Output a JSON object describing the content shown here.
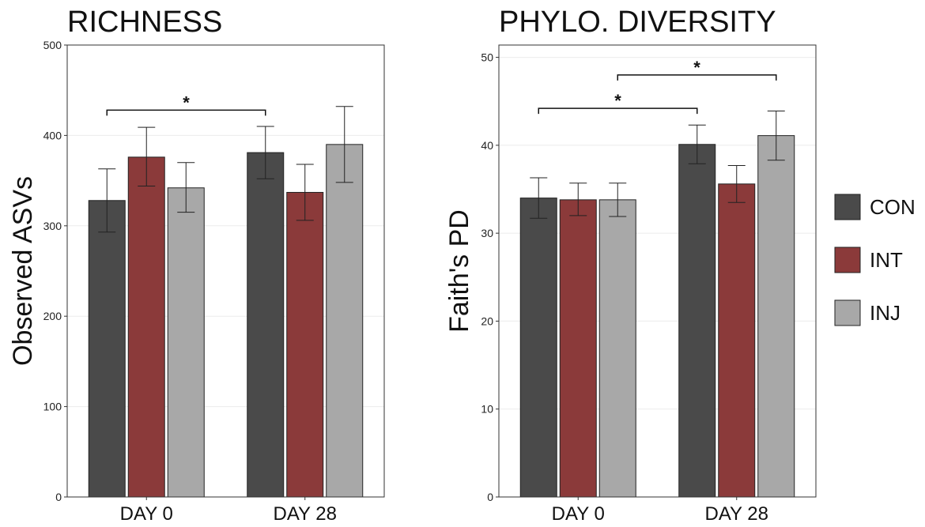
{
  "chart_data": [
    {
      "type": "bar",
      "title": "RICHNESS",
      "xlabel": "",
      "ylabel": "Observed ASVs",
      "ylim": [
        0,
        500
      ],
      "yticks": [
        0,
        100,
        200,
        300,
        400,
        500
      ],
      "categories": [
        "DAY 0",
        "DAY 28"
      ],
      "series": [
        {
          "name": "CON",
          "values": [
            328,
            381
          ],
          "err_low": [
            293,
            352
          ],
          "err_high": [
            363,
            410
          ]
        },
        {
          "name": "INT",
          "values": [
            376,
            337
          ],
          "err_low": [
            344,
            306
          ],
          "err_high": [
            409,
            368
          ]
        },
        {
          "name": "INJ",
          "values": [
            342,
            390
          ],
          "err_low": [
            315,
            348
          ],
          "err_high": [
            370,
            432
          ]
        }
      ],
      "significance": [
        {
          "from_category": 0,
          "from_series": 0,
          "to_category": 1,
          "to_series": 0,
          "y": 428,
          "label": "*"
        }
      ],
      "grid": true
    },
    {
      "type": "bar",
      "title": "PHYLO. DIVERSITY",
      "xlabel": "",
      "ylabel": "Faith's PD",
      "ylim": [
        0,
        51.4
      ],
      "yticks": [
        0,
        10,
        20,
        30,
        40,
        50
      ],
      "categories": [
        "DAY 0",
        "DAY 28"
      ],
      "series": [
        {
          "name": "CON",
          "values": [
            34.0,
            40.1
          ],
          "err_low": [
            31.7,
            37.9
          ],
          "err_high": [
            36.3,
            42.3
          ]
        },
        {
          "name": "INT",
          "values": [
            33.8,
            35.6
          ],
          "err_low": [
            32.0,
            33.5
          ],
          "err_high": [
            35.7,
            37.7
          ]
        },
        {
          "name": "INJ",
          "values": [
            33.8,
            41.1
          ],
          "err_low": [
            31.9,
            38.3
          ],
          "err_high": [
            35.7,
            43.9
          ]
        }
      ],
      "significance": [
        {
          "from_category": 0,
          "from_series": 0,
          "to_category": 1,
          "to_series": 0,
          "y": 44.2,
          "label": "*"
        },
        {
          "from_category": 0,
          "from_series": 2,
          "to_category": 1,
          "to_series": 2,
          "y": 48.0,
          "label": "*"
        }
      ],
      "grid": true
    }
  ],
  "legend": {
    "position": "right",
    "items": [
      {
        "name": "CON",
        "color": "#4a4a4a"
      },
      {
        "name": "INT",
        "color": "#8b3a3a"
      },
      {
        "name": "INJ",
        "color": "#a8a8a8"
      }
    ]
  }
}
